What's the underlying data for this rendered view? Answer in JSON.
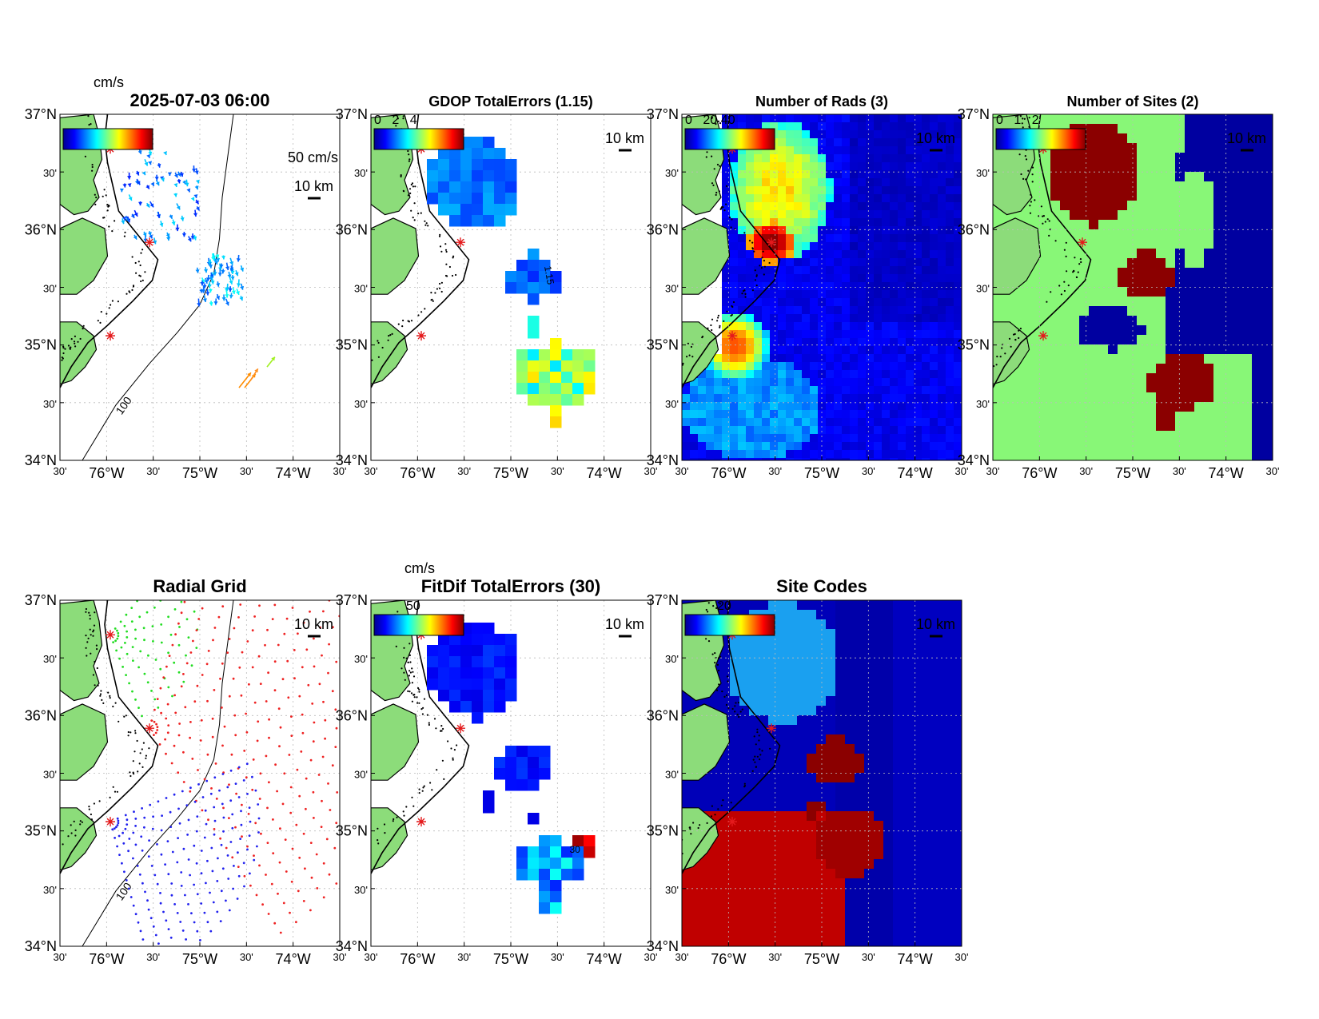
{
  "datetime": "2025-07-03 06:00",
  "ticks": {
    "lat": [
      "37°N",
      "30'",
      "36°N",
      "30'",
      "35°N",
      "30'",
      "34°N"
    ],
    "lon": [
      "30'",
      "76°W",
      "30'",
      "75°W",
      "30'",
      "74°W",
      "30'"
    ]
  },
  "scale_label": "10 km",
  "colors": {
    "land": "#8cdc7a",
    "green_field": "#88f777",
    "navy": "#0000a0",
    "dark_red": "#8b0000",
    "site_marker": "#e41a1c"
  },
  "panels": [
    {
      "id": "currents",
      "title": "2025-07-03 06:00",
      "colorbar_unit": "cm/s",
      "colorbar_ticks": [],
      "vector_scale_label": "50 cm/s",
      "contour_label": "100"
    },
    {
      "id": "gdop",
      "title": "GDOP TotalErrors (1.15)",
      "colorbar_unit": "",
      "colorbar_ticks": [
        "0",
        "2",
        "4"
      ],
      "contour_label": "1.15"
    },
    {
      "id": "nrads",
      "title": "Number of Rads (3)",
      "colorbar_unit": "",
      "colorbar_ticks": [
        "0",
        "20",
        "40"
      ]
    },
    {
      "id": "nsites",
      "title": "Number of Sites (2)",
      "colorbar_unit": "",
      "colorbar_ticks": [
        "0",
        "1",
        "2"
      ]
    },
    {
      "id": "radialgrid",
      "title": "Radial Grid",
      "contour_label": "100"
    },
    {
      "id": "fitdif",
      "title": "FitDif TotalErrors (30)",
      "colorbar_unit": "cm/s",
      "colorbar_ticks": [
        "50"
      ],
      "contour_label": "30"
    },
    {
      "id": "sitecodes",
      "title": "Site Codes",
      "colorbar_unit": "",
      "colorbar_ticks": [
        "20"
      ]
    }
  ]
}
